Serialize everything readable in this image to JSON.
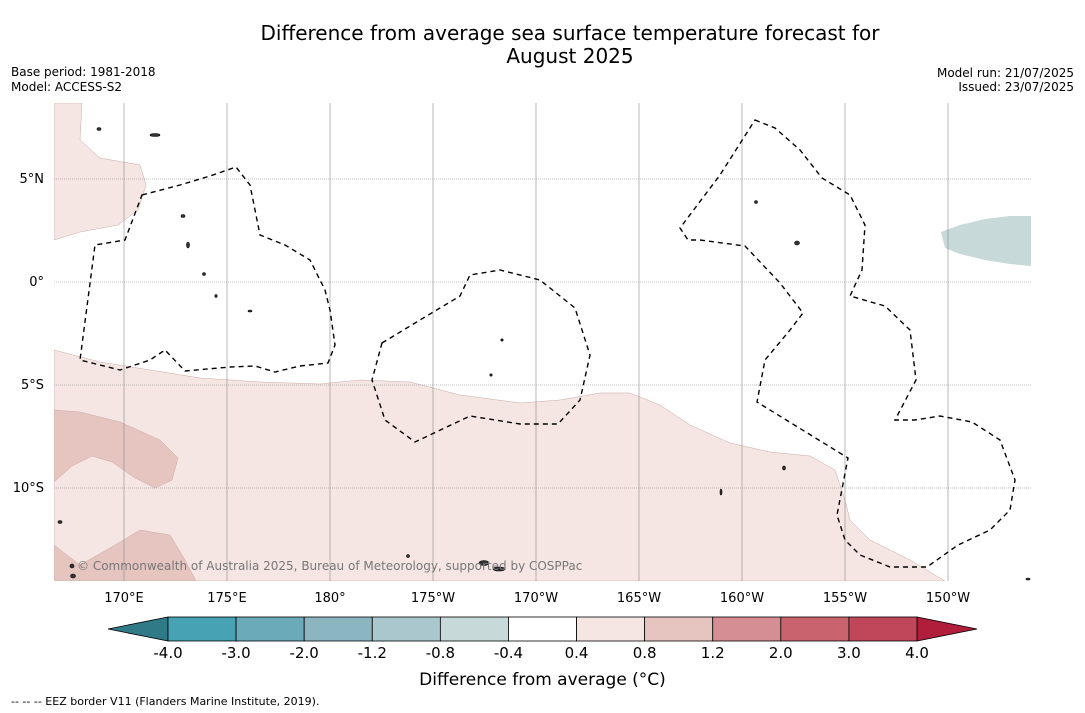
{
  "title_line1": "Difference from average sea surface temperature forecast for",
  "title_line2": "August 2025",
  "base_period": "Base period: 1981-2018",
  "model": "Model: ACCESS-S2",
  "model_run": "Model run: 21/07/2025",
  "issued": "Issued: 23/07/2025",
  "copyright": "© Commonwealth of Australia 2025, Bureau of Meteorology, supported by COSPPac",
  "lon_labels": [
    "170°E",
    "175°E",
    "180°",
    "175°W",
    "170°W",
    "165°W",
    "160°W",
    "155°W",
    "150°W"
  ],
  "lat_labels": [
    "5°N",
    "0°",
    "5°S",
    "10°S"
  ],
  "colorbar": {
    "ticks": [
      "-4.0",
      "-3.0",
      "-2.0",
      "-1.2",
      "-0.8",
      "-0.4",
      "0.4",
      "0.8",
      "1.2",
      "2.0",
      "3.0",
      "4.0"
    ],
    "colors": [
      "#2f7a86",
      "#47a2b4",
      "#6aaab9",
      "#8bb5c1",
      "#a9c7cc",
      "#c7d9d9",
      "#ffffff",
      "#f5e6e4",
      "#e6c5c1",
      "#d48e94",
      "#c9646f",
      "#bf4759",
      "#b01e3c"
    ],
    "label": "Difference from average ($^\\circ$C)",
    "label_display": "Difference from average (°C)"
  },
  "footer": "--  --  -- EEZ border V11 (Flanders Marine Institute, 2019)."
}
